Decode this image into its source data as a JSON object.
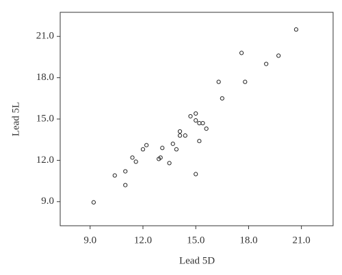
{
  "chart_data": {
    "type": "scatter",
    "x_label": "Lead 5D",
    "y_label": "Lead 5L",
    "color": "#222222",
    "x": [
      9.2,
      10.4,
      11.0,
      11.0,
      11.4,
      11.6,
      12.0,
      12.2,
      12.9,
      13.0,
      13.1,
      13.5,
      13.7,
      13.9,
      14.1,
      14.1,
      14.4,
      14.7,
      15.0,
      15.0,
      15.0,
      15.2,
      15.2,
      15.4,
      15.6,
      16.3,
      16.5,
      17.6,
      17.8,
      19.0,
      19.7,
      20.7
    ],
    "values": [
      8.95,
      10.9,
      11.2,
      10.2,
      12.2,
      11.9,
      12.8,
      13.1,
      12.1,
      12.2,
      12.9,
      11.8,
      13.2,
      12.8,
      14.1,
      13.8,
      13.8,
      15.2,
      11.0,
      15.4,
      14.9,
      14.7,
      13.4,
      14.7,
      14.3,
      17.7,
      16.5,
      19.8,
      17.7,
      19.0,
      19.6,
      21.5
    ],
    "xlim": [
      7.3,
      22.8
    ],
    "ylim": [
      7.25,
      22.75
    ],
    "xticks": [
      {
        "value": 9,
        "label": "9.0"
      },
      {
        "value": 12,
        "label": "12.0"
      },
      {
        "value": 15,
        "label": "15.0"
      },
      {
        "value": 18,
        "label": "18.0"
      },
      {
        "value": 21,
        "label": "21.0"
      }
    ],
    "yticks": [
      {
        "value": 9,
        "label": "9.0"
      },
      {
        "value": 12,
        "label": "12.0"
      },
      {
        "value": 15,
        "label": "15.0"
      },
      {
        "value": 18,
        "label": "18.0"
      },
      {
        "value": 21,
        "label": "21.0"
      }
    ]
  }
}
